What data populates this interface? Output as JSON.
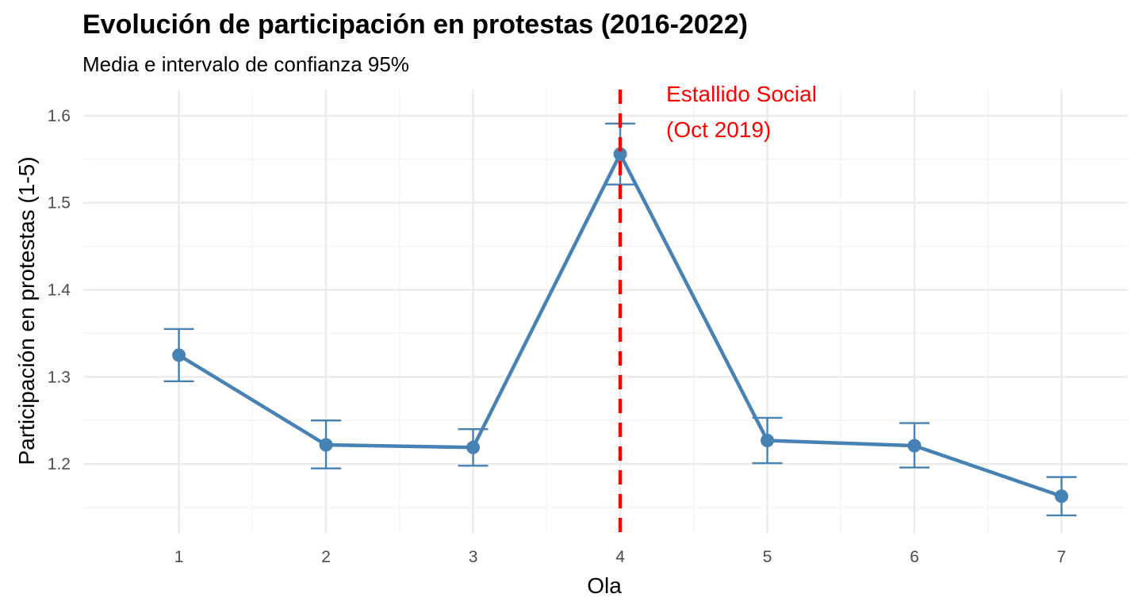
{
  "chart_data": {
    "type": "line",
    "title": "Evolución de participación en protestas (2016-2022)",
    "subtitle": "Media e intervalo de confianza 95%",
    "xlabel": "Ola",
    "ylabel": "Participación en protestas (1-5)",
    "x": [
      1,
      2,
      3,
      4,
      5,
      6,
      7
    ],
    "x_ticks": [
      "1",
      "2",
      "3",
      "4",
      "5",
      "6",
      "7"
    ],
    "y_ticks": [
      "1.2",
      "1.3",
      "1.4",
      "1.5",
      "1.6"
    ],
    "y_tick_values": [
      1.2,
      1.3,
      1.4,
      1.5,
      1.6
    ],
    "xlim": [
      0.35,
      7.45
    ],
    "ylim": [
      1.12,
      1.63
    ],
    "grid": true,
    "series": [
      {
        "values": [
          1.325,
          1.222,
          1.219,
          1.556,
          1.227,
          1.221,
          1.163
        ],
        "ci_lower": [
          1.295,
          1.195,
          1.198,
          1.521,
          1.201,
          1.196,
          1.141
        ],
        "ci_upper": [
          1.355,
          1.25,
          1.24,
          1.591,
          1.253,
          1.247,
          1.185
        ],
        "color": "#4682b4"
      }
    ],
    "vline": {
      "x": 4,
      "color": "#ff0000",
      "style": "dashed",
      "label_lines": [
        "Estallido Social",
        "(Oct 2019)"
      ]
    }
  }
}
